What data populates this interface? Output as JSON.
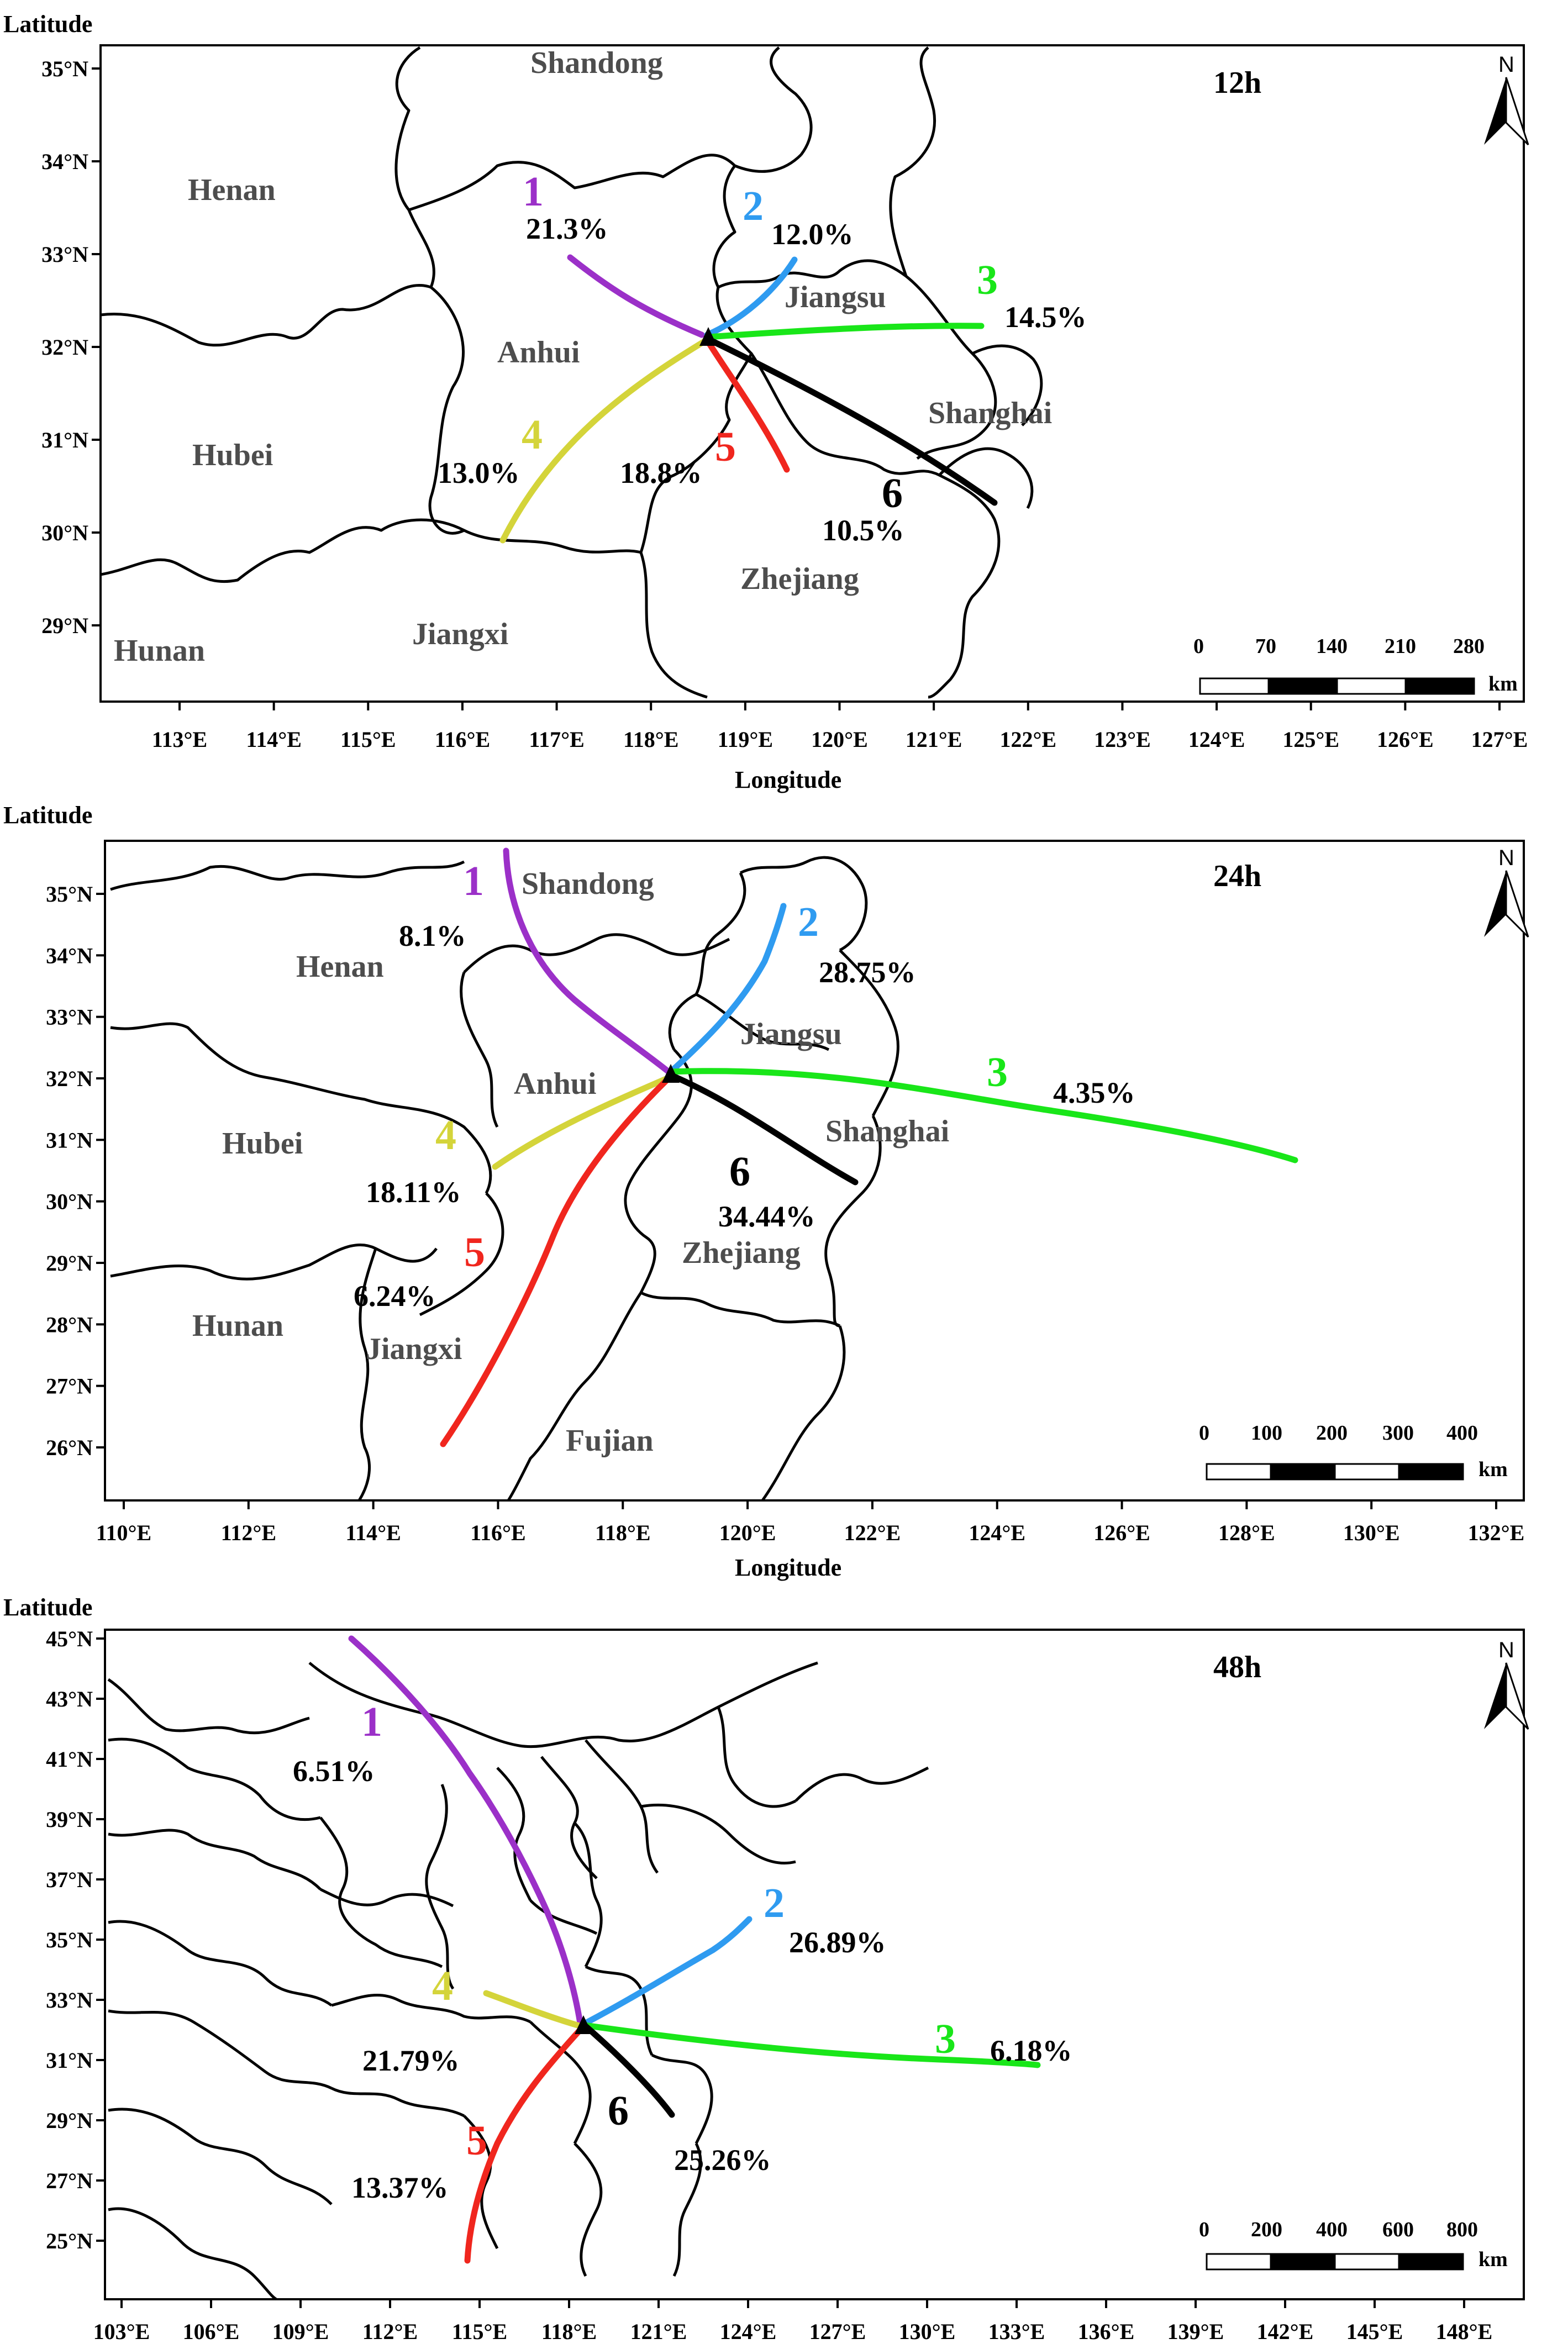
{
  "colors": {
    "route1": "#9b30c8",
    "route2": "#2f9bf0",
    "route3": "#19e619",
    "route4": "#d4d43a",
    "route5": "#f0261e",
    "route6": "#000000",
    "province_label": "#4d4d4d"
  },
  "icons": {
    "north_arrow": "north-arrow-icon"
  },
  "panels": [
    {
      "hour_label": "12h",
      "axis": {
        "y_title": "Latitude",
        "x_title": "Longitude"
      },
      "x_ticks": [
        "113°E",
        "114°E",
        "115°E",
        "116°E",
        "117°E",
        "118°E",
        "119°E",
        "120°E",
        "121°E",
        "122°E",
        "123°E",
        "124°E",
        "125°E",
        "126°E",
        "127°E"
      ],
      "y_ticks": [
        "35°N",
        "34°N",
        "33°N",
        "32°N",
        "31°N",
        "30°N",
        "29°N"
      ],
      "provinces": [
        "Shandong",
        "Henan",
        "Jiangsu",
        "Anhui",
        "Hubei",
        "Shanghai",
        "Zhejiang",
        "Jiangxi",
        "Hunan"
      ],
      "north_letter": "N",
      "scale": {
        "labels": [
          "0",
          "70",
          "140",
          "210",
          "280"
        ],
        "unit": "km"
      },
      "routes": [
        {
          "id": "1",
          "percent": "21.3%"
        },
        {
          "id": "2",
          "percent": "12.0%"
        },
        {
          "id": "3",
          "percent": "14.5%"
        },
        {
          "id": "4",
          "percent": "13.0%"
        },
        {
          "id": "5",
          "percent": "18.8%"
        },
        {
          "id": "6",
          "percent": "10.5%"
        }
      ]
    },
    {
      "hour_label": "24h",
      "axis": {
        "y_title": "Latitude",
        "x_title": "Longitude"
      },
      "x_ticks": [
        "110°E",
        "112°E",
        "114°E",
        "116°E",
        "118°E",
        "120°E",
        "122°E",
        "124°E",
        "126°E",
        "128°E",
        "130°E",
        "132°E"
      ],
      "y_ticks": [
        "35°N",
        "34°N",
        "33°N",
        "32°N",
        "31°N",
        "30°N",
        "29°N",
        "28°N",
        "27°N",
        "26°N"
      ],
      "provinces": [
        "Shandong",
        "Henan",
        "Jiangsu",
        "Anhui",
        "Hubei",
        "Shanghai",
        "Zhejiang",
        "Hunan",
        "Jiangxi",
        "Fujian"
      ],
      "north_letter": "N",
      "scale": {
        "labels": [
          "0",
          "100",
          "200",
          "300",
          "400"
        ],
        "unit": "km"
      },
      "routes": [
        {
          "id": "1",
          "percent": "8.1%"
        },
        {
          "id": "2",
          "percent": "28.75%"
        },
        {
          "id": "3",
          "percent": "4.35%"
        },
        {
          "id": "4",
          "percent": "18.11%"
        },
        {
          "id": "5",
          "percent": "6.24%"
        },
        {
          "id": "6",
          "percent": "34.44%"
        }
      ]
    },
    {
      "hour_label": "48h",
      "axis": {
        "y_title": "Latitude",
        "x_title": ""
      },
      "x_ticks": [
        "103°E",
        "106°E",
        "109°E",
        "112°E",
        "115°E",
        "118°E",
        "121°E",
        "124°E",
        "127°E",
        "130°E",
        "133°E",
        "136°E",
        "139°E",
        "142°E",
        "145°E",
        "148°E"
      ],
      "y_ticks": [
        "45°N",
        "43°N",
        "41°N",
        "39°N",
        "37°N",
        "35°N",
        "33°N",
        "31°N",
        "29°N",
        "27°N",
        "25°N"
      ],
      "provinces": [],
      "north_letter": "N",
      "scale": {
        "labels": [
          "0",
          "200",
          "400",
          "600",
          "800"
        ],
        "unit": "km"
      },
      "routes": [
        {
          "id": "1",
          "percent": "6.51%"
        },
        {
          "id": "2",
          "percent": "26.89%"
        },
        {
          "id": "3",
          "percent": "6.18%"
        },
        {
          "id": "4",
          "percent": "21.79%"
        },
        {
          "id": "5",
          "percent": "13.37%"
        },
        {
          "id": "6",
          "percent": "25.26%"
        }
      ]
    }
  ]
}
